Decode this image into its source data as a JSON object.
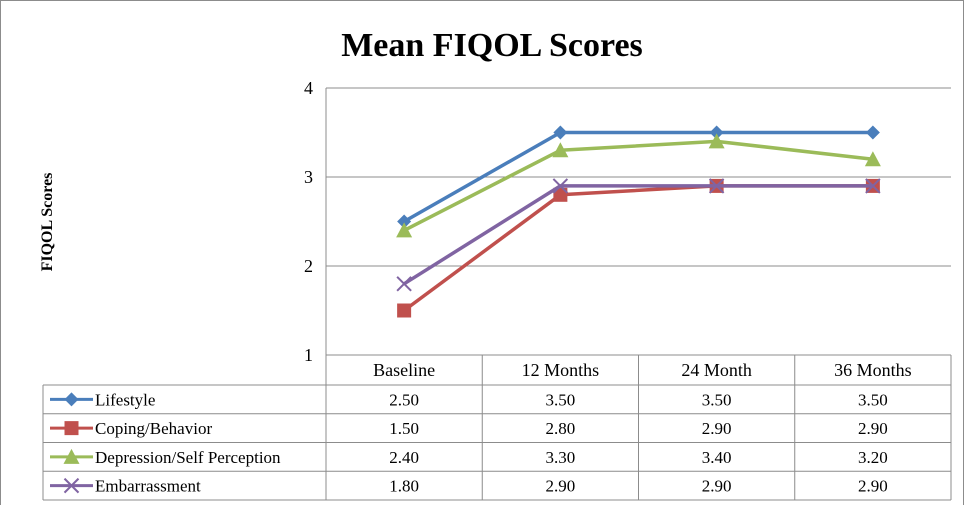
{
  "chart_data": {
    "type": "line",
    "title": "Mean FIQOL Scores",
    "ylabel": "FIQOL Scores",
    "xlabel": "",
    "categories": [
      "Baseline",
      "12 Months",
      "24 Month",
      "36 Months"
    ],
    "ylim": [
      1,
      4
    ],
    "yticks": [
      "1",
      "2",
      "3",
      "4"
    ],
    "grid": true,
    "legend": "data-table-left",
    "series": [
      {
        "name": "Lifestyle",
        "color": "#4a7ebb",
        "marker": "diamond",
        "values": [
          2.5,
          3.5,
          3.5,
          3.5
        ],
        "labels": [
          "2.50",
          "3.50",
          "3.50",
          "3.50"
        ]
      },
      {
        "name": "Coping/Behavior",
        "color": "#c0504d",
        "marker": "square",
        "values": [
          1.5,
          2.8,
          2.9,
          2.9
        ],
        "labels": [
          "1.50",
          "2.80",
          "2.90",
          "2.90"
        ]
      },
      {
        "name": "Depression/Self Perception",
        "color": "#9bbb59",
        "marker": "triangle",
        "values": [
          2.4,
          3.3,
          3.4,
          3.2
        ],
        "labels": [
          "2.40",
          "3.30",
          "3.40",
          "3.20"
        ]
      },
      {
        "name": "Embarrassment",
        "color": "#8064a2",
        "marker": "x",
        "values": [
          1.8,
          2.9,
          2.9,
          2.9
        ],
        "labels": [
          "1.80",
          "2.90",
          "2.90",
          "2.90"
        ]
      }
    ]
  }
}
